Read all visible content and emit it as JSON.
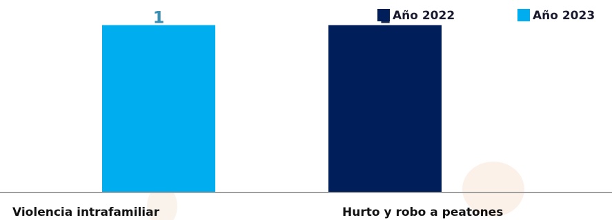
{
  "chart_data": {
    "type": "bar",
    "categories": [
      "Violencia intrafamiliar",
      "Hurto y robo a peatones"
    ],
    "series": [
      {
        "name": "Año 2022",
        "color": "#001e5a",
        "values": [
          null,
          1
        ]
      },
      {
        "name": "Año 2023",
        "color": "#00aeef",
        "values": [
          1,
          null
        ]
      }
    ],
    "ylim": [
      0,
      1.15
    ],
    "grid": false,
    "legend_position": "top-right",
    "label_colors": {
      "Año 2022": "#1c2a4a",
      "Año 2023": "#3a8fb5"
    }
  }
}
